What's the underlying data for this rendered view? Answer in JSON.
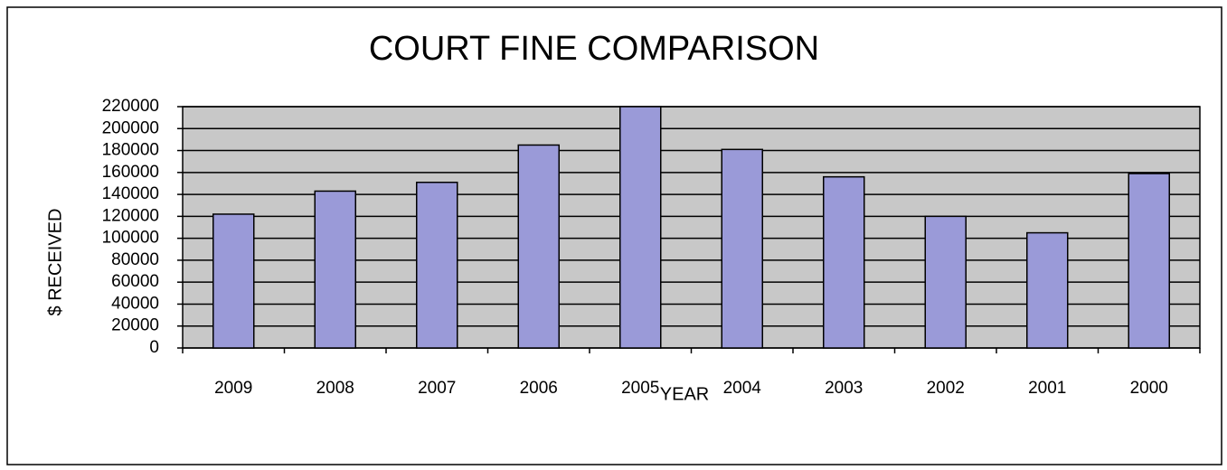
{
  "chart_data": {
    "type": "bar",
    "title": "COURT FINE COMPARISON",
    "x_label": "YEAR",
    "y_label": "$ RECEIVED",
    "categories": [
      "2009",
      "2008",
      "2007",
      "2006",
      "2005",
      "2004",
      "2003",
      "2002",
      "2001",
      "2000"
    ],
    "values": [
      122000,
      143000,
      151000,
      185000,
      220000,
      181000,
      156000,
      120000,
      105000,
      159000
    ],
    "color": "#9a9ad8",
    "plot_background": "#c8c8c8",
    "ylim": [
      0,
      220000
    ],
    "yticks": [
      0,
      20000,
      40000,
      60000,
      80000,
      100000,
      120000,
      140000,
      160000,
      180000,
      200000,
      220000
    ],
    "grid": true
  }
}
